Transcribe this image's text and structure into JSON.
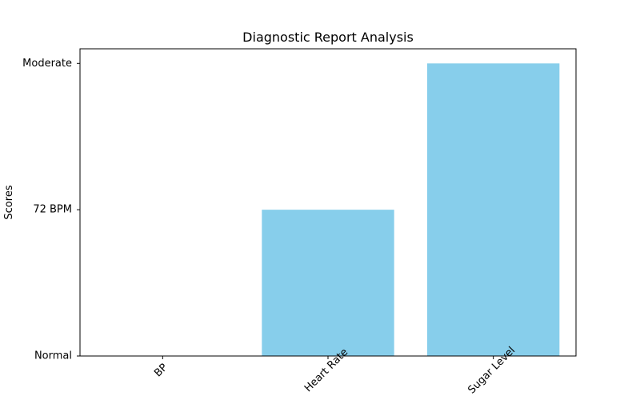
{
  "chart_data": {
    "type": "bar",
    "title": "Diagnostic Report Analysis",
    "xlabel": "",
    "ylabel": "Scores",
    "categories": [
      "BP",
      "Heart Rate",
      "Sugar Level"
    ],
    "values": [
      0,
      1,
      2
    ],
    "y_tick_labels": [
      "Normal",
      "72 BPM",
      "Moderate"
    ],
    "ylim": [
      0,
      2.1
    ],
    "bar_color": "#87CEEB",
    "grid": false,
    "legend": false
  }
}
